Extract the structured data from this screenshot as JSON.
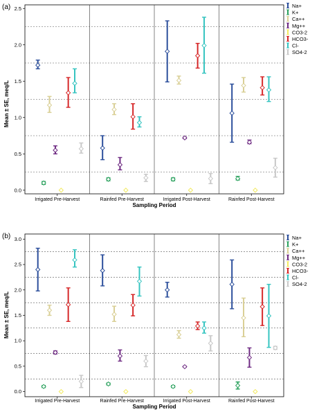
{
  "colors": {
    "Na+": "#2b4e9b",
    "K+": "#2ca25f",
    "Ca++": "#d9cf95",
    "Mg++": "#6e2a82",
    "CO3-2": "#f2ea62",
    "HCO3-": "#d62728",
    "Cl-": "#35c4c0",
    "SO4-2": "#c8c8c8"
  },
  "chart_data": [
    {
      "panel_label": "(a)",
      "type": "error-bar",
      "xlabel": "Sampling Period",
      "ylabel": "Mean ± SE, meq/L",
      "categories": [
        "Irrigated Pre-Harvest",
        "Rainfed Pre-Harvest",
        "Irrigated Post-Harvest",
        "Rainfed Post-Harvest"
      ],
      "ylim": [
        -0.05,
        2.55
      ],
      "yticks": [
        "0.0",
        "0.5",
        "1.0",
        "1.5",
        "2.0",
        "2.5"
      ],
      "grid_lines": [
        0.25,
        0.75,
        1.25,
        1.75,
        2.25
      ],
      "legend_position": "right",
      "series": [
        {
          "name": "Na+",
          "mean": [
            1.72,
            0.58,
            1.91,
            1.06
          ],
          "low": [
            1.67,
            0.42,
            1.49,
            0.66
          ],
          "high": [
            1.79,
            0.75,
            2.33,
            1.46
          ]
        },
        {
          "name": "K+",
          "mean": [
            0.1,
            0.15,
            0.15,
            0.16
          ],
          "low": [
            0.08,
            0.13,
            0.13,
            0.14
          ],
          "high": [
            0.12,
            0.17,
            0.17,
            0.19
          ]
        },
        {
          "name": "Ca++",
          "mean": [
            1.17,
            1.11,
            1.51,
            1.44
          ],
          "low": [
            1.07,
            1.04,
            1.46,
            1.35
          ],
          "high": [
            1.29,
            1.19,
            1.57,
            1.55
          ]
        },
        {
          "name": "Mg++",
          "mean": [
            0.55,
            0.35,
            0.72,
            0.66
          ],
          "low": [
            0.5,
            0.28,
            0.71,
            0.64
          ],
          "high": [
            0.61,
            0.45,
            0.73,
            0.69
          ]
        },
        {
          "name": "CO3-2",
          "mean": [
            0.0,
            0.0,
            0.0,
            0.0
          ],
          "low": [
            0.0,
            0.0,
            0.0,
            0.0
          ],
          "high": [
            0.0,
            0.0,
            0.0,
            0.0
          ]
        },
        {
          "name": "HCO3-",
          "mean": [
            1.34,
            1.01,
            1.85,
            1.41
          ],
          "low": [
            1.14,
            0.84,
            1.68,
            1.31
          ],
          "high": [
            1.55,
            1.19,
            2.02,
            1.56
          ]
        },
        {
          "name": "Cl-",
          "mean": [
            1.47,
            0.93,
            1.99,
            1.38
          ],
          "low": [
            1.34,
            0.87,
            1.61,
            1.22
          ],
          "high": [
            1.67,
            1.01,
            2.38,
            1.56
          ]
        },
        {
          "name": "SO4-2",
          "mean": [
            0.57,
            0.17,
            0.16,
            0.31
          ],
          "low": [
            0.51,
            0.12,
            0.09,
            0.18
          ],
          "high": [
            0.65,
            0.22,
            0.23,
            0.44
          ]
        }
      ]
    },
    {
      "panel_label": "(b)",
      "type": "error-bar",
      "xlabel": "Sampling Period",
      "ylabel": "Mean ± SE, meq/L",
      "categories": [
        "Irrigated Pre-Harvest",
        "Rainfed Pre-Harvest",
        "Irrigated Post-Harvest",
        "Rainfed Post-Harvest"
      ],
      "ylim": [
        -0.1,
        3.1
      ],
      "yticks": [
        "0.0",
        "0.5",
        "1.0",
        "1.5",
        "2.0",
        "2.5",
        "3.0"
      ],
      "grid_lines": [
        0.25,
        0.75,
        1.25,
        1.75,
        2.25,
        2.75
      ],
      "legend_position": "right",
      "series": [
        {
          "name": "Na+",
          "mean": [
            2.4,
            2.38,
            2.0,
            2.11
          ],
          "low": [
            1.98,
            2.08,
            1.86,
            1.63
          ],
          "high": [
            2.82,
            2.69,
            2.15,
            2.59
          ]
        },
        {
          "name": "K+",
          "mean": [
            0.1,
            0.15,
            0.1,
            0.12
          ],
          "low": [
            0.08,
            0.13,
            0.08,
            0.05
          ],
          "high": [
            0.12,
            0.17,
            0.12,
            0.19
          ]
        },
        {
          "name": "Ca++",
          "mean": [
            1.6,
            1.52,
            1.12,
            1.45
          ],
          "low": [
            1.5,
            1.38,
            1.05,
            1.08
          ],
          "high": [
            1.7,
            1.68,
            1.2,
            1.84
          ]
        },
        {
          "name": "Mg++",
          "mean": [
            0.77,
            0.7,
            0.49,
            0.67
          ],
          "low": [
            0.74,
            0.6,
            0.48,
            0.48
          ],
          "high": [
            0.8,
            0.82,
            0.5,
            0.86
          ]
        },
        {
          "name": "CO3-2",
          "mean": [
            0.0,
            0.0,
            0.0,
            0.0
          ],
          "low": [
            0.0,
            0.0,
            0.0,
            0.0
          ],
          "high": [
            0.0,
            0.0,
            0.0,
            0.0
          ]
        },
        {
          "name": "HCO3-",
          "mean": [
            1.71,
            1.7,
            1.29,
            1.67
          ],
          "low": [
            1.38,
            1.49,
            1.22,
            1.3
          ],
          "high": [
            2.04,
            1.91,
            1.37,
            2.04
          ]
        },
        {
          "name": "Cl-",
          "mean": [
            2.59,
            2.17,
            1.25,
            1.49
          ],
          "low": [
            2.45,
            1.88,
            1.15,
            0.87
          ],
          "high": [
            2.79,
            2.45,
            1.37,
            2.11
          ]
        },
        {
          "name": "SO4-2",
          "mean": [
            0.2,
            0.6,
            0.95,
            0.86
          ],
          "low": [
            0.08,
            0.49,
            0.8,
            0.83
          ],
          "high": [
            0.32,
            0.71,
            1.1,
            0.89
          ]
        }
      ]
    }
  ]
}
